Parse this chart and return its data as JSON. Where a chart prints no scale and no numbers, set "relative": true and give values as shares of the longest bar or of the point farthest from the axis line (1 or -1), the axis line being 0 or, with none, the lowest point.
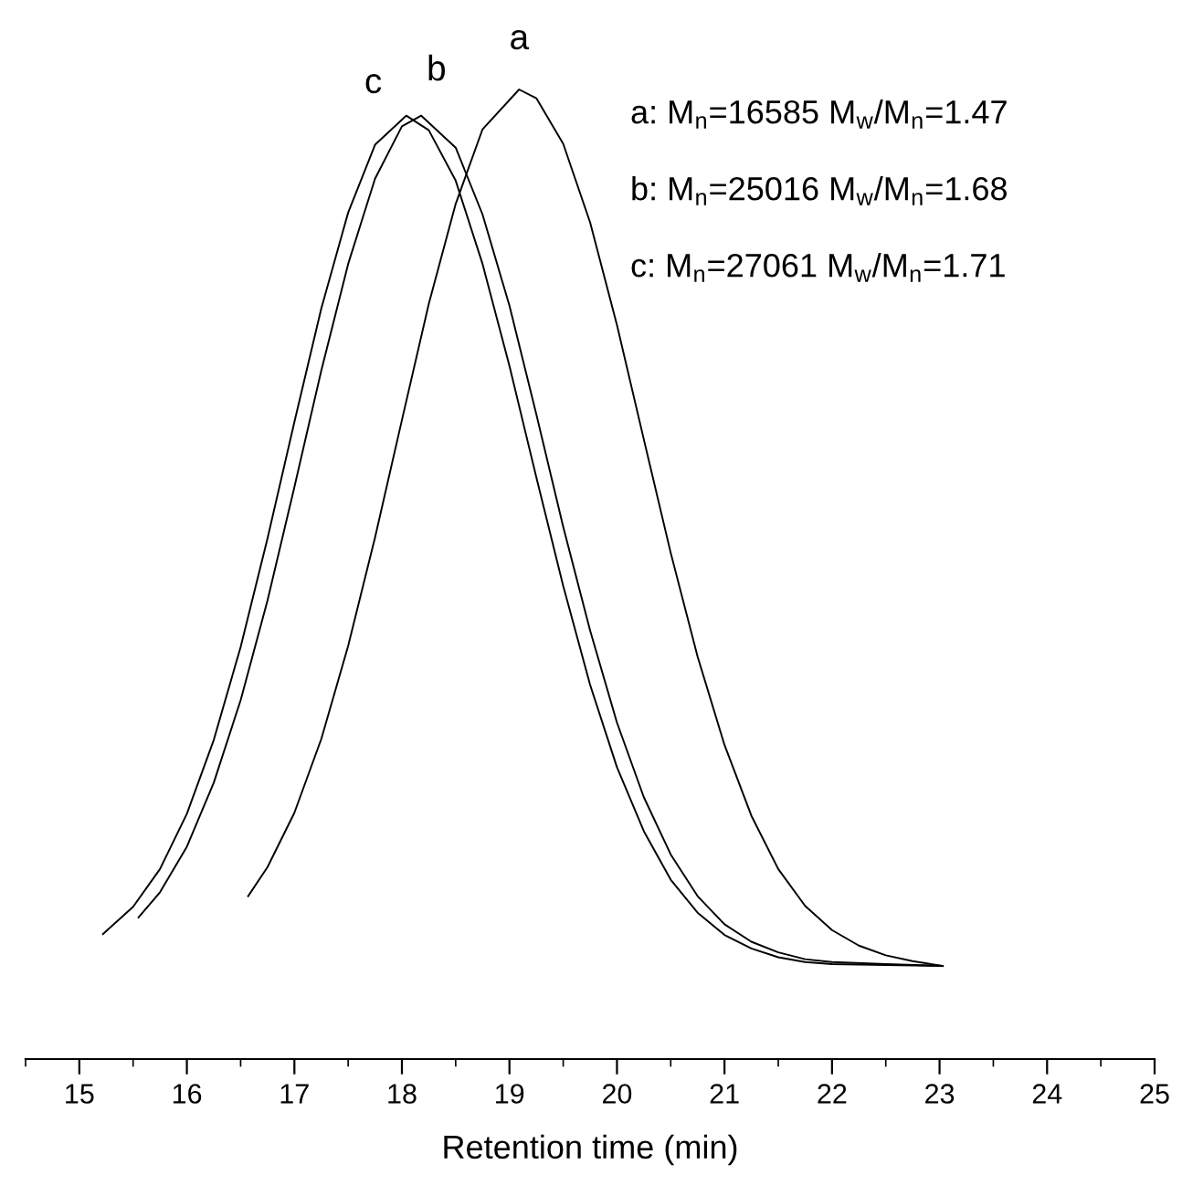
{
  "chart_data": {
    "type": "line",
    "relative": true,
    "xlabel": "Retention time (min)",
    "xlim": [
      14.5,
      25
    ],
    "xticks": [
      15,
      16,
      17,
      18,
      19,
      20,
      21,
      22,
      23,
      24,
      25
    ],
    "grid": false,
    "legend": false,
    "marker": "none",
    "line_style": "solid",
    "annotations": [
      "a: M$_{n}$=16585 M$_{w}$/M$_{n}$=1.47",
      "b: M$_{n}$=25016 M$_{w}$/M$_{n}$=1.68",
      "c: M$_{n}$=27061 M$_{w}$/M$_{n}$=1.71"
    ],
    "series": [
      {
        "name": "a",
        "color": "#000000",
        "x": [
          16.57,
          16.75,
          17.0,
          17.25,
          17.5,
          17.75,
          18.0,
          18.25,
          18.5,
          18.75,
          19.09,
          19.25,
          19.5,
          19.75,
          20.0,
          20.25,
          20.5,
          20.75,
          21.0,
          21.25,
          21.5,
          21.75,
          22.0,
          22.25,
          22.5,
          22.75,
          23.03
        ],
        "values": [
          0.168,
          0.198,
          0.254,
          0.33,
          0.426,
          0.538,
          0.659,
          0.779,
          0.882,
          0.959,
          1.0,
          0.991,
          0.944,
          0.863,
          0.757,
          0.639,
          0.522,
          0.415,
          0.324,
          0.251,
          0.196,
          0.158,
          0.133,
          0.117,
          0.107,
          0.101,
          0.096
        ]
      },
      {
        "name": "b",
        "color": "#000000",
        "x": [
          15.55,
          15.75,
          16.0,
          16.25,
          16.5,
          16.75,
          17.0,
          17.25,
          17.5,
          17.75,
          18.0,
          18.18,
          18.5,
          18.75,
          19.0,
          19.25,
          19.5,
          19.75,
          20.0,
          20.25,
          20.5,
          20.75,
          21.0,
          21.25,
          21.5,
          21.75,
          22.0,
          22.5,
          23.03
        ],
        "values": [
          0.146,
          0.172,
          0.219,
          0.285,
          0.37,
          0.473,
          0.59,
          0.71,
          0.82,
          0.908,
          0.962,
          0.973,
          0.94,
          0.871,
          0.777,
          0.665,
          0.549,
          0.442,
          0.347,
          0.27,
          0.211,
          0.168,
          0.139,
          0.121,
          0.11,
          0.103,
          0.1,
          0.098,
          0.096
        ]
      },
      {
        "name": "c",
        "color": "#000000",
        "x": [
          15.22,
          15.5,
          15.75,
          16.0,
          16.25,
          16.5,
          16.75,
          17.0,
          17.25,
          17.5,
          17.75,
          18.04,
          18.25,
          18.5,
          18.75,
          19.0,
          19.25,
          19.5,
          19.75,
          20.0,
          20.25,
          20.5,
          20.75,
          21.0,
          21.25,
          21.5,
          21.75,
          22.0,
          22.5,
          23.03
        ],
        "values": [
          0.129,
          0.157,
          0.196,
          0.253,
          0.329,
          0.425,
          0.537,
          0.657,
          0.774,
          0.873,
          0.943,
          0.973,
          0.958,
          0.906,
          0.82,
          0.715,
          0.6,
          0.488,
          0.386,
          0.301,
          0.235,
          0.185,
          0.151,
          0.128,
          0.114,
          0.105,
          0.1,
          0.098,
          0.097,
          0.096
        ]
      }
    ]
  }
}
